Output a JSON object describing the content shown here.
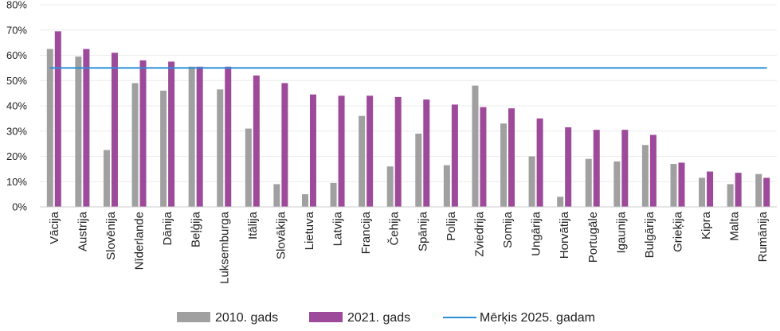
{
  "chart_data": {
    "type": "bar",
    "title": "",
    "xlabel": "",
    "ylabel": "",
    "ylim": [
      0,
      80
    ],
    "y_ticks": [
      "0%",
      "10%",
      "20%",
      "30%",
      "40%",
      "50%",
      "60%",
      "70%",
      "80%"
    ],
    "categories": [
      "Vācija",
      "Austrija",
      "Slovēnija",
      "Nīderlande",
      "Dānija",
      "Beļģija",
      "Luksemburga",
      "Itālija",
      "Slovākija",
      "Lietuva",
      "Latvija",
      "Francija",
      "Čehija",
      "Spānija",
      "Polija",
      "Zviedrija",
      "Somija",
      "Ungārija",
      "Horvātija",
      "Portugāle",
      "Igaunija",
      "Bulgārija",
      "Grieķija",
      "Kipra",
      "Malta",
      "Rumānija"
    ],
    "series": [
      {
        "name": "2010. gads",
        "color": "#a0a0a0",
        "values": [
          62.5,
          59.5,
          22.5,
          49,
          46,
          55.5,
          46.5,
          31,
          9,
          5,
          9.5,
          36,
          16,
          29,
          16.5,
          48,
          33,
          20,
          4,
          19,
          18,
          24.5,
          17,
          11.5,
          9,
          13
        ]
      },
      {
        "name": "2021. gads",
        "color": "#9e4a9a",
        "values": [
          69.5,
          62.5,
          61,
          58,
          57.5,
          55.5,
          55.5,
          52,
          49,
          44.5,
          44,
          44,
          43.5,
          42.5,
          40.5,
          39.5,
          39,
          35,
          31.5,
          30.5,
          30.5,
          28.5,
          17.5,
          14,
          13.5,
          11.5
        ]
      }
    ],
    "target_line": {
      "name": "Mērķis 2025. gadam",
      "value": 55,
      "color": "#2a8fd6"
    },
    "legend": {
      "position": "bottom-center",
      "items": [
        "2010. gads",
        "2021. gads",
        "Mērķis 2025. gadam"
      ]
    }
  }
}
